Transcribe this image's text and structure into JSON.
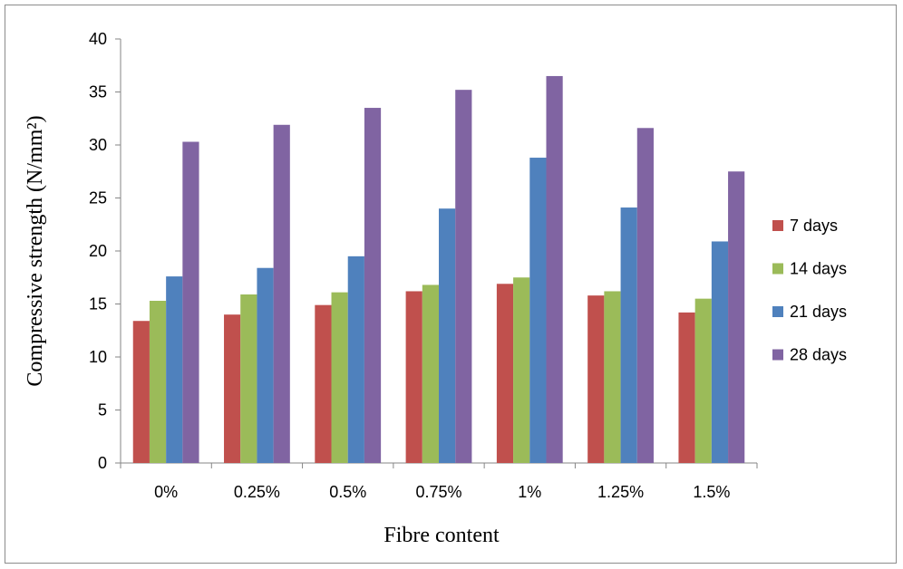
{
  "chart_data": {
    "type": "bar",
    "categories": [
      "0%",
      "0.25%",
      "0.5%",
      "0.75%",
      "1%",
      "1.25%",
      "1.5%"
    ],
    "series": [
      {
        "name": "7 days",
        "color": "#c0504d",
        "values": [
          13.4,
          14.0,
          14.9,
          16.2,
          16.9,
          15.8,
          14.2
        ]
      },
      {
        "name": "14 days",
        "color": "#9bbb59",
        "values": [
          15.3,
          15.9,
          16.1,
          16.8,
          17.5,
          16.2,
          15.5
        ]
      },
      {
        "name": "21 days",
        "color": "#4f81bd",
        "values": [
          17.6,
          18.4,
          19.5,
          24.0,
          28.8,
          24.1,
          20.9
        ]
      },
      {
        "name": "28 days",
        "color": "#8064a2",
        "values": [
          30.3,
          31.9,
          33.5,
          35.2,
          36.5,
          31.6,
          27.5
        ]
      }
    ],
    "xlabel": "Fibre content",
    "ylabel": "Compressive strength (N/mm²)",
    "ylim": [
      0,
      40
    ],
    "yticks": [
      0,
      5,
      10,
      15,
      20,
      25,
      30,
      35,
      40
    ],
    "legend_position": "right",
    "grid": false
  }
}
